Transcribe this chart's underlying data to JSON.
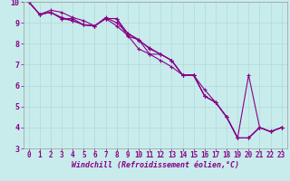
{
  "title": "",
  "xlabel": "Windchill (Refroidissement éolien,°C)",
  "ylabel": "",
  "background_color": "#c8ecec",
  "grid_color": "#b0d8d8",
  "line_color": "#880088",
  "xlim": [
    -0.5,
    23.5
  ],
  "ylim": [
    3,
    10
  ],
  "xticks": [
    0,
    1,
    2,
    3,
    4,
    5,
    6,
    7,
    8,
    9,
    10,
    11,
    12,
    13,
    14,
    15,
    16,
    17,
    18,
    19,
    20,
    21,
    22,
    23
  ],
  "yticks": [
    3,
    4,
    5,
    6,
    7,
    8,
    9,
    10
  ],
  "series": [
    [
      10.0,
      9.4,
      9.5,
      9.2,
      9.1,
      8.9,
      8.85,
      9.2,
      9.2,
      8.35,
      8.2,
      7.75,
      7.5,
      7.2,
      6.5,
      6.5,
      5.5,
      5.2,
      4.5,
      3.5,
      3.5,
      4.0,
      3.8,
      4.0
    ],
    [
      10.0,
      9.4,
      9.5,
      9.2,
      9.2,
      8.9,
      8.85,
      9.25,
      9.0,
      8.5,
      8.15,
      7.8,
      7.5,
      7.2,
      6.5,
      6.5,
      5.5,
      5.2,
      4.5,
      3.5,
      6.5,
      4.0,
      3.8,
      4.0
    ],
    [
      10.0,
      9.4,
      9.5,
      9.25,
      9.1,
      8.9,
      8.85,
      9.2,
      8.85,
      8.4,
      7.75,
      7.5,
      7.2,
      6.9,
      6.5,
      6.5,
      5.8,
      5.2,
      4.5,
      3.5,
      3.5,
      4.0,
      3.8,
      4.0
    ],
    [
      10.0,
      9.4,
      9.6,
      9.5,
      9.25,
      9.1,
      8.85,
      9.2,
      9.2,
      8.5,
      8.2,
      7.5,
      7.5,
      7.2,
      6.5,
      6.5,
      5.5,
      5.2,
      4.5,
      3.5,
      3.5,
      4.0,
      3.8,
      4.0
    ]
  ],
  "tick_fontsize": 5.5,
  "xlabel_fontsize": 6.0,
  "marker_size": 2.5,
  "line_width": 0.8
}
